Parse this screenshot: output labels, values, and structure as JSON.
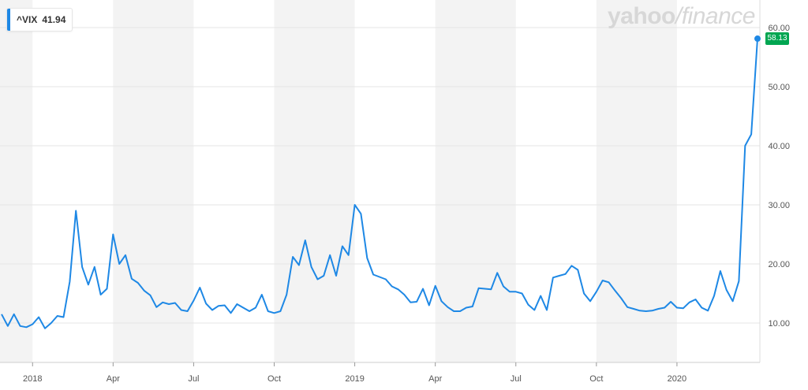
{
  "legend": {
    "symbol": "^VIX",
    "value": "41.94",
    "color": "#1e88e5"
  },
  "brand": {
    "name": "yahoo",
    "suffix": "finance"
  },
  "last_value_badge": "58.13",
  "colors": {
    "line": "#1e88e5",
    "badge": "#00a651",
    "band": "#f3f3f3"
  },
  "chart_data": {
    "type": "line",
    "title": "",
    "xlabel": "",
    "ylabel": "",
    "ylim": [
      3,
      65
    ],
    "y_ticks": [
      10,
      20,
      30,
      40,
      50,
      60
    ],
    "y_tick_labels": [
      "10.00",
      "20.00",
      "30.00",
      "40.00",
      "50.00",
      "60.00"
    ],
    "x_ticks": [
      {
        "label": "2018",
        "week": 5
      },
      {
        "label": "Apr",
        "week": 18
      },
      {
        "label": "Jul",
        "week": 31
      },
      {
        "label": "Oct",
        "week": 44
      },
      {
        "label": "2019",
        "week": 57
      },
      {
        "label": "Apr",
        "week": 70
      },
      {
        "label": "Jul",
        "week": 83
      },
      {
        "label": "Oct",
        "week": 96
      },
      {
        "label": "2020",
        "week": 109
      }
    ],
    "grid": true,
    "legend_position": "top-left",
    "series": [
      {
        "name": "^VIX",
        "values": [
          11.5,
          9.5,
          11.5,
          9.5,
          9.3,
          9.8,
          11.0,
          9.1,
          10.0,
          11.2,
          11.0,
          17.0,
          29.0,
          19.5,
          16.5,
          19.5,
          14.8,
          15.8,
          25.0,
          20.0,
          21.5,
          17.5,
          16.8,
          15.5,
          14.7,
          12.7,
          13.5,
          13.2,
          13.4,
          12.2,
          12.0,
          13.8,
          16.0,
          13.3,
          12.2,
          12.9,
          13.0,
          11.7,
          13.2,
          12.6,
          12.0,
          12.6,
          14.8,
          12.0,
          11.7,
          12.0,
          14.8,
          21.2,
          19.8,
          24.0,
          19.5,
          17.4,
          18.0,
          21.5,
          18.0,
          23.0,
          21.5,
          30.0,
          28.5,
          21.0,
          18.2,
          17.8,
          17.4,
          16.2,
          15.7,
          14.8,
          13.5,
          13.6,
          15.8,
          13.0,
          16.3,
          13.7,
          12.7,
          12.0,
          12.0,
          12.6,
          12.8,
          15.9,
          15.8,
          15.7,
          18.5,
          16.2,
          15.3,
          15.3,
          15.0,
          13.1,
          12.2,
          14.6,
          12.2,
          17.7,
          18.0,
          18.3,
          19.7,
          19.0,
          15.0,
          13.7,
          15.3,
          17.2,
          16.9,
          15.5,
          14.2,
          12.7,
          12.4,
          12.1,
          12.0,
          12.1,
          12.4,
          12.6,
          13.6,
          12.6,
          12.5,
          13.5,
          14.0,
          12.6,
          12.1,
          14.6,
          18.8,
          15.6,
          13.7,
          17.1,
          40.0,
          41.94,
          58.13
        ]
      }
    ]
  }
}
